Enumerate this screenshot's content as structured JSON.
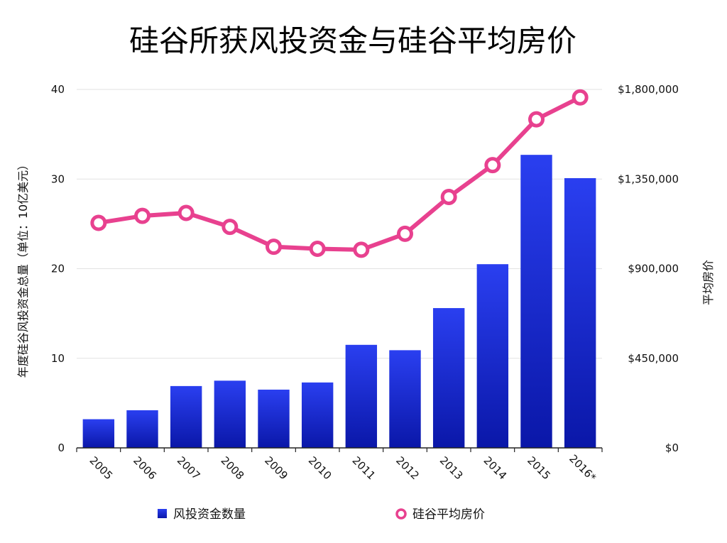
{
  "chart_data": {
    "type": "bar",
    "title": "硅谷所获风投资金与硅谷平均房价",
    "categories": [
      "2005",
      "2006",
      "2007",
      "2008",
      "2009",
      "2010",
      "2011",
      "2012",
      "2013",
      "2014",
      "2015",
      "2016*"
    ],
    "series": [
      {
        "name": "风投资金数量",
        "type": "bar",
        "axis": "left",
        "color": "#1a2fd6",
        "values": [
          3.2,
          4.2,
          6.9,
          7.5,
          6.5,
          7.3,
          11.5,
          10.9,
          15.6,
          20.5,
          32.7,
          30.1
        ]
      },
      {
        "name": "硅谷平均房价",
        "type": "line",
        "axis": "right",
        "color": "#e8418f",
        "values": [
          1130000,
          1165000,
          1180000,
          1110000,
          1010000,
          1000000,
          995000,
          1075000,
          1260000,
          1420000,
          1650000,
          1760000
        ]
      }
    ],
    "y_left": {
      "label": "年度硅谷风投资金总量（单位：10亿美元）",
      "ylim": [
        0,
        40
      ],
      "ticks": [
        0,
        10,
        20,
        30,
        40
      ],
      "tick_labels": [
        "0",
        "10",
        "20",
        "30",
        "40"
      ]
    },
    "y_right": {
      "label": "平均房价",
      "ylim": [
        0,
        1800000
      ],
      "ticks": [
        0,
        450000,
        900000,
        1350000,
        1800000
      ],
      "tick_labels": [
        "$0",
        "$450,000",
        "$900,000",
        "$1,350,000",
        "$1,800,000"
      ]
    },
    "grid": true,
    "legend": {
      "position": "bottom",
      "items": [
        "风投资金数量",
        "硅谷平均房价"
      ]
    }
  }
}
